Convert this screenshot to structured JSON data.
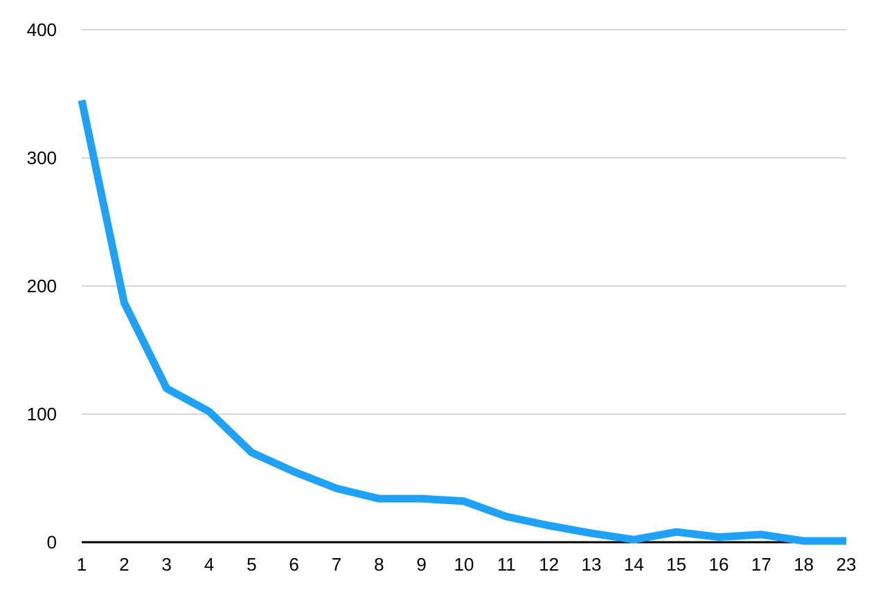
{
  "chart_data": {
    "type": "line",
    "title": "",
    "xlabel": "",
    "ylabel": "",
    "categories": [
      "1",
      "2",
      "3",
      "4",
      "5",
      "6",
      "7",
      "8",
      "9",
      "10",
      "11",
      "12",
      "13",
      "14",
      "15",
      "16",
      "17",
      "18",
      "23"
    ],
    "series": [
      {
        "values": [
          345,
          187,
          120,
          102,
          70,
          55,
          42,
          34,
          34,
          32,
          20,
          13,
          7,
          2,
          8,
          4,
          6,
          1,
          1
        ]
      }
    ],
    "ylim": [
      0,
      400
    ],
    "yticks": [
      "0",
      "100",
      "200",
      "300",
      "400"
    ],
    "grid": true,
    "legend": "none",
    "colors": {
      "line": "#1fa2f5",
      "grid": "#c8c8c8",
      "axis": "#000000"
    }
  }
}
